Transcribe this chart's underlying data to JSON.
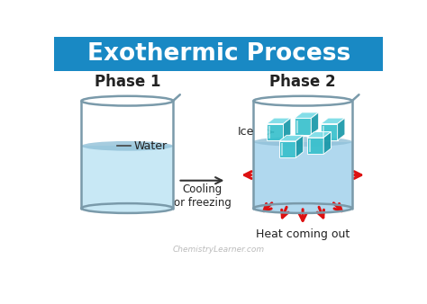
{
  "title": "Exothermic Process",
  "title_bg": "#1989c4",
  "title_color": "#ffffff",
  "phase1_label": "Phase 1",
  "phase2_label": "Phase 2",
  "water_label": "Water",
  "ice_label": "Ice",
  "cooling_label": "Cooling\nor freezing",
  "heat_label": "Heat coming out",
  "watermark": "ChemistryLearner.com",
  "bg_color": "#ffffff",
  "beaker_color": "#7a9aaa",
  "water_fill": "#c8e8f5",
  "water_fill2": "#b0d8ee",
  "ice_front": "#38c0cc",
  "ice_top": "#7adce6",
  "ice_right": "#1898a8",
  "arrow_color": "#dd1111",
  "process_arrow_color": "#333333",
  "ellipse_color": "#90c0d8",
  "bottom_ellipse_color": "#a0c8dc"
}
